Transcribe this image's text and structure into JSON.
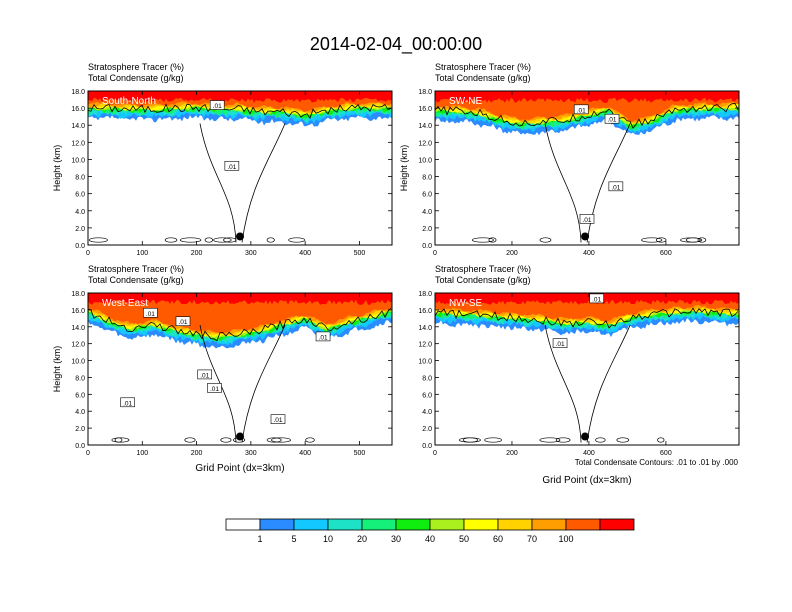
{
  "figure": {
    "title": "2014-02-04_00:00:00",
    "footnote": "Total Condensate Contours: .01 to .01 by .000"
  },
  "colors": {
    "levels": [
      "#ffffff",
      "#2b8cff",
      "#13c8ff",
      "#1ee2c8",
      "#14f07a",
      "#10ee10",
      "#aaf01e",
      "#ffff00",
      "#ffd200",
      "#ff9e00",
      "#ff5a00",
      "#ff0000"
    ],
    "contour": "#000000",
    "frame": "#000000"
  },
  "legend": {
    "labels": [
      "1",
      "5",
      "10",
      "20",
      "30",
      "40",
      "50",
      "60",
      "70",
      "100"
    ]
  },
  "chart_data": [
    {
      "type": "heatmap",
      "panel_label": "South-North",
      "header": [
        "Stratosphere Tracer   (%)",
        "Total Condensate   (g/kg)"
      ],
      "xlabel": "",
      "ylabel": "Height (km)",
      "xlim": [
        0,
        560
      ],
      "ylim": [
        0,
        18
      ],
      "xticks": [
        "0",
        "100",
        "200",
        "300",
        "400",
        "500"
      ],
      "xtick_values": [
        0,
        100,
        200,
        300,
        400,
        500
      ],
      "yticks": [
        "0.0",
        "2.0",
        "4.0",
        "6.0",
        "8.0",
        "10.0",
        "12.0",
        "14.0",
        "16.0",
        "18.0"
      ],
      "tracer_base_km": [
        14.8,
        14.8,
        14.7,
        14.7,
        14.8,
        14.9,
        14.7,
        14.7,
        14.4,
        14.4,
        14.0,
        14.5,
        14.8,
        14.9,
        14.8
      ],
      "contour_labels": [
        {
          "x": 265,
          "y": 9.2,
          "text": ".01"
        },
        {
          "x": 238,
          "y": 16.3,
          "text": ".01"
        }
      ],
      "marker": {
        "x": 280,
        "y": 1.0
      }
    },
    {
      "type": "heatmap",
      "panel_label": "SW-NE",
      "header": [
        "Stratosphere Tracer   (%)",
        "Total Condensate   (g/kg)"
      ],
      "xlabel": "",
      "ylabel": "Height (km)",
      "xlim": [
        0,
        790
      ],
      "ylim": [
        0,
        18
      ],
      "xticks": [
        "0",
        "200",
        "400",
        "600"
      ],
      "xtick_values": [
        0,
        200,
        400,
        600
      ],
      "yticks": [
        "0.0",
        "2.0",
        "4.0",
        "6.0",
        "8.0",
        "10.0",
        "12.0",
        "14.0",
        "16.0",
        "18.0"
      ],
      "tracer_base_km": [
        14.5,
        14.5,
        14.2,
        13.5,
        13.0,
        13.2,
        13.4,
        14.0,
        14.6,
        12.8,
        13.4,
        14.6,
        14.8,
        14.8,
        14.9
      ],
      "contour_labels": [
        {
          "x": 395,
          "y": 3.0,
          "text": ".01"
        },
        {
          "x": 470,
          "y": 6.8,
          "text": ".01"
        },
        {
          "x": 380,
          "y": 15.8,
          "text": ".01"
        },
        {
          "x": 460,
          "y": 14.7,
          "text": ".01"
        }
      ],
      "marker": {
        "x": 390,
        "y": 1.0
      }
    },
    {
      "type": "heatmap",
      "panel_label": "West-East",
      "header": [
        "Stratosphere Tracer   (%)",
        "Total Condensate   (g/kg)"
      ],
      "xlabel": "Grid Point (dx=3km)",
      "ylabel": "Height (km)",
      "xlim": [
        0,
        560
      ],
      "ylim": [
        0,
        18
      ],
      "xticks": [
        "0",
        "100",
        "200",
        "300",
        "400",
        "500"
      ],
      "xtick_values": [
        0,
        100,
        200,
        300,
        400,
        500
      ],
      "yticks": [
        "0.0",
        "2.0",
        "4.0",
        "6.0",
        "8.0",
        "10.0",
        "12.0",
        "14.0",
        "16.0",
        "18.0"
      ],
      "tracer_base_km": [
        14.6,
        13.4,
        12.6,
        13.1,
        12.4,
        11.9,
        11.6,
        11.9,
        12.4,
        13.1,
        13.8,
        12.6,
        13.4,
        14.0,
        14.6
      ],
      "contour_labels": [
        {
          "x": 73,
          "y": 5.0,
          "text": ".01"
        },
        {
          "x": 215,
          "y": 8.3,
          "text": ".01"
        },
        {
          "x": 233,
          "y": 6.7,
          "text": ".01"
        },
        {
          "x": 350,
          "y": 3.0,
          "text": ".01"
        },
        {
          "x": 433,
          "y": 12.8,
          "text": ".01"
        },
        {
          "x": 115,
          "y": 15.6,
          "text": ".01"
        },
        {
          "x": 175,
          "y": 14.6,
          "text": ".01"
        }
      ],
      "marker": {
        "x": 280,
        "y": 1.0
      }
    },
    {
      "type": "heatmap",
      "panel_label": "NW-SE",
      "header": [
        "Stratosphere Tracer   (%)",
        "Total Condensate   (g/kg)"
      ],
      "xlabel": "Grid Point (dx=3km)",
      "ylabel": "",
      "xlim": [
        0,
        790
      ],
      "ylim": [
        0,
        18
      ],
      "xticks": [
        "0",
        "200",
        "400",
        "600"
      ],
      "xtick_values": [
        0,
        200,
        400,
        600
      ],
      "yticks": [
        "0.0",
        "2.0",
        "4.0",
        "6.0",
        "8.0",
        "10.0",
        "12.0",
        "14.0",
        "16.0",
        "18.0"
      ],
      "tracer_base_km": [
        14.5,
        14.3,
        14.2,
        14.0,
        13.8,
        13.6,
        13.2,
        13.4,
        13.0,
        13.9,
        14.3,
        14.5,
        14.7,
        14.5,
        14.4
      ],
      "contour_labels": [
        {
          "x": 325,
          "y": 12.0,
          "text": ".01"
        },
        {
          "x": 420,
          "y": 17.3,
          "text": ".01"
        }
      ],
      "marker": {
        "x": 390,
        "y": 1.0
      }
    }
  ]
}
